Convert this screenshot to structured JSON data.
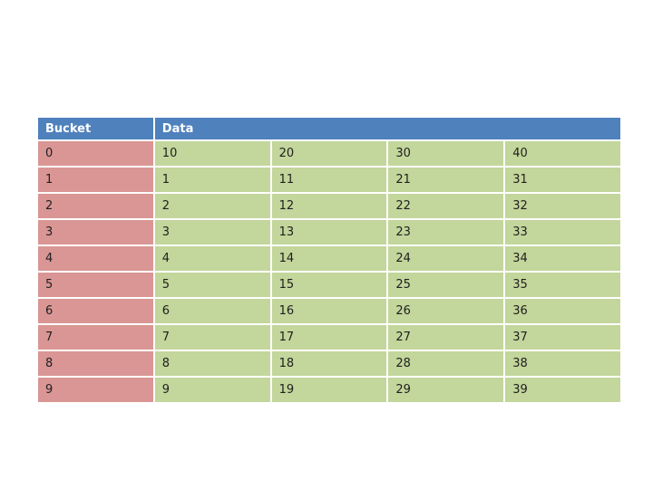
{
  "page": {
    "background": "#ffffff"
  },
  "table": {
    "header": {
      "bucket": "Bucket",
      "data": "Data"
    },
    "colors": {
      "header_bg": "#4f81bd",
      "header_text": "#ffffff",
      "bucket_cell_bg": "#d99694",
      "data_cell_bg": "#c3d69b",
      "gridline": "#ffffff",
      "body_text": "#1f1f1f"
    }
  },
  "chart_data": {
    "type": "table",
    "title": "",
    "columns": [
      "Bucket",
      "Data"
    ],
    "layout": {
      "bucket_column_count": 1,
      "data_column_count": 4,
      "header_data_cell_colspan": 4
    },
    "rows": [
      {
        "bucket": 0,
        "data": [
          10,
          20,
          30,
          40
        ]
      },
      {
        "bucket": 1,
        "data": [
          1,
          11,
          21,
          31
        ]
      },
      {
        "bucket": 2,
        "data": [
          2,
          12,
          22,
          32
        ]
      },
      {
        "bucket": 3,
        "data": [
          3,
          13,
          23,
          33
        ]
      },
      {
        "bucket": 4,
        "data": [
          4,
          14,
          24,
          34
        ]
      },
      {
        "bucket": 5,
        "data": [
          5,
          15,
          25,
          35
        ]
      },
      {
        "bucket": 6,
        "data": [
          6,
          16,
          26,
          36
        ]
      },
      {
        "bucket": 7,
        "data": [
          7,
          17,
          27,
          37
        ]
      },
      {
        "bucket": 8,
        "data": [
          8,
          18,
          28,
          38
        ]
      },
      {
        "bucket": 9,
        "data": [
          9,
          19,
          29,
          39
        ]
      }
    ]
  }
}
